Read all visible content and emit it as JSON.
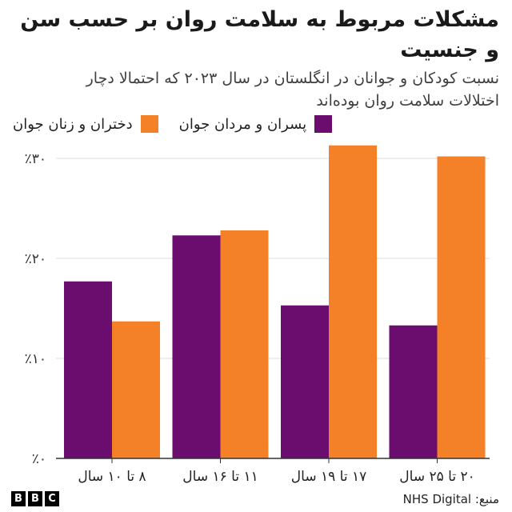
{
  "title": "مشکلات مربوط به سلامت روان بر حسب سن و جنسیت",
  "subtitle": "نسبت کودکان و جوانان در انگلستان در سال ۲۰۲۳ که احتمالا دچار اختلالات سلامت روان بوده‌اند",
  "colors": {
    "boys": "#6a0d6e",
    "girls": "#f48028",
    "grid": "#dcdcdc",
    "axis": "#333333"
  },
  "legend": [
    {
      "label": "پسران و مردان جوان",
      "color": "#6a0d6e"
    },
    {
      "label": "دختران و زنان جوان",
      "color": "#f48028"
    }
  ],
  "source": "منبع: NHS Digital",
  "logo": [
    "B",
    "B",
    "C"
  ],
  "chart_data": {
    "type": "bar",
    "categories": [
      "۸ تا ۱۰ سال",
      "۱۱ تا ۱۶ سال",
      "۱۷ تا ۱۹ سال",
      "۲۰ تا ۲۵ سال"
    ],
    "series": [
      {
        "name": "پسران و مردان جوان",
        "values": [
          17.7,
          22.3,
          15.3,
          13.3
        ]
      },
      {
        "name": "دختران و زنان جوان",
        "values": [
          13.7,
          22.8,
          31.3,
          30.2
        ]
      }
    ],
    "ylim": [
      0,
      32
    ],
    "yticks": [
      0,
      10,
      20,
      30
    ],
    "ytick_labels": [
      "٪۰",
      "٪۱۰",
      "٪۲۰",
      "٪۳۰"
    ],
    "grid": true,
    "legend_position": "top"
  }
}
